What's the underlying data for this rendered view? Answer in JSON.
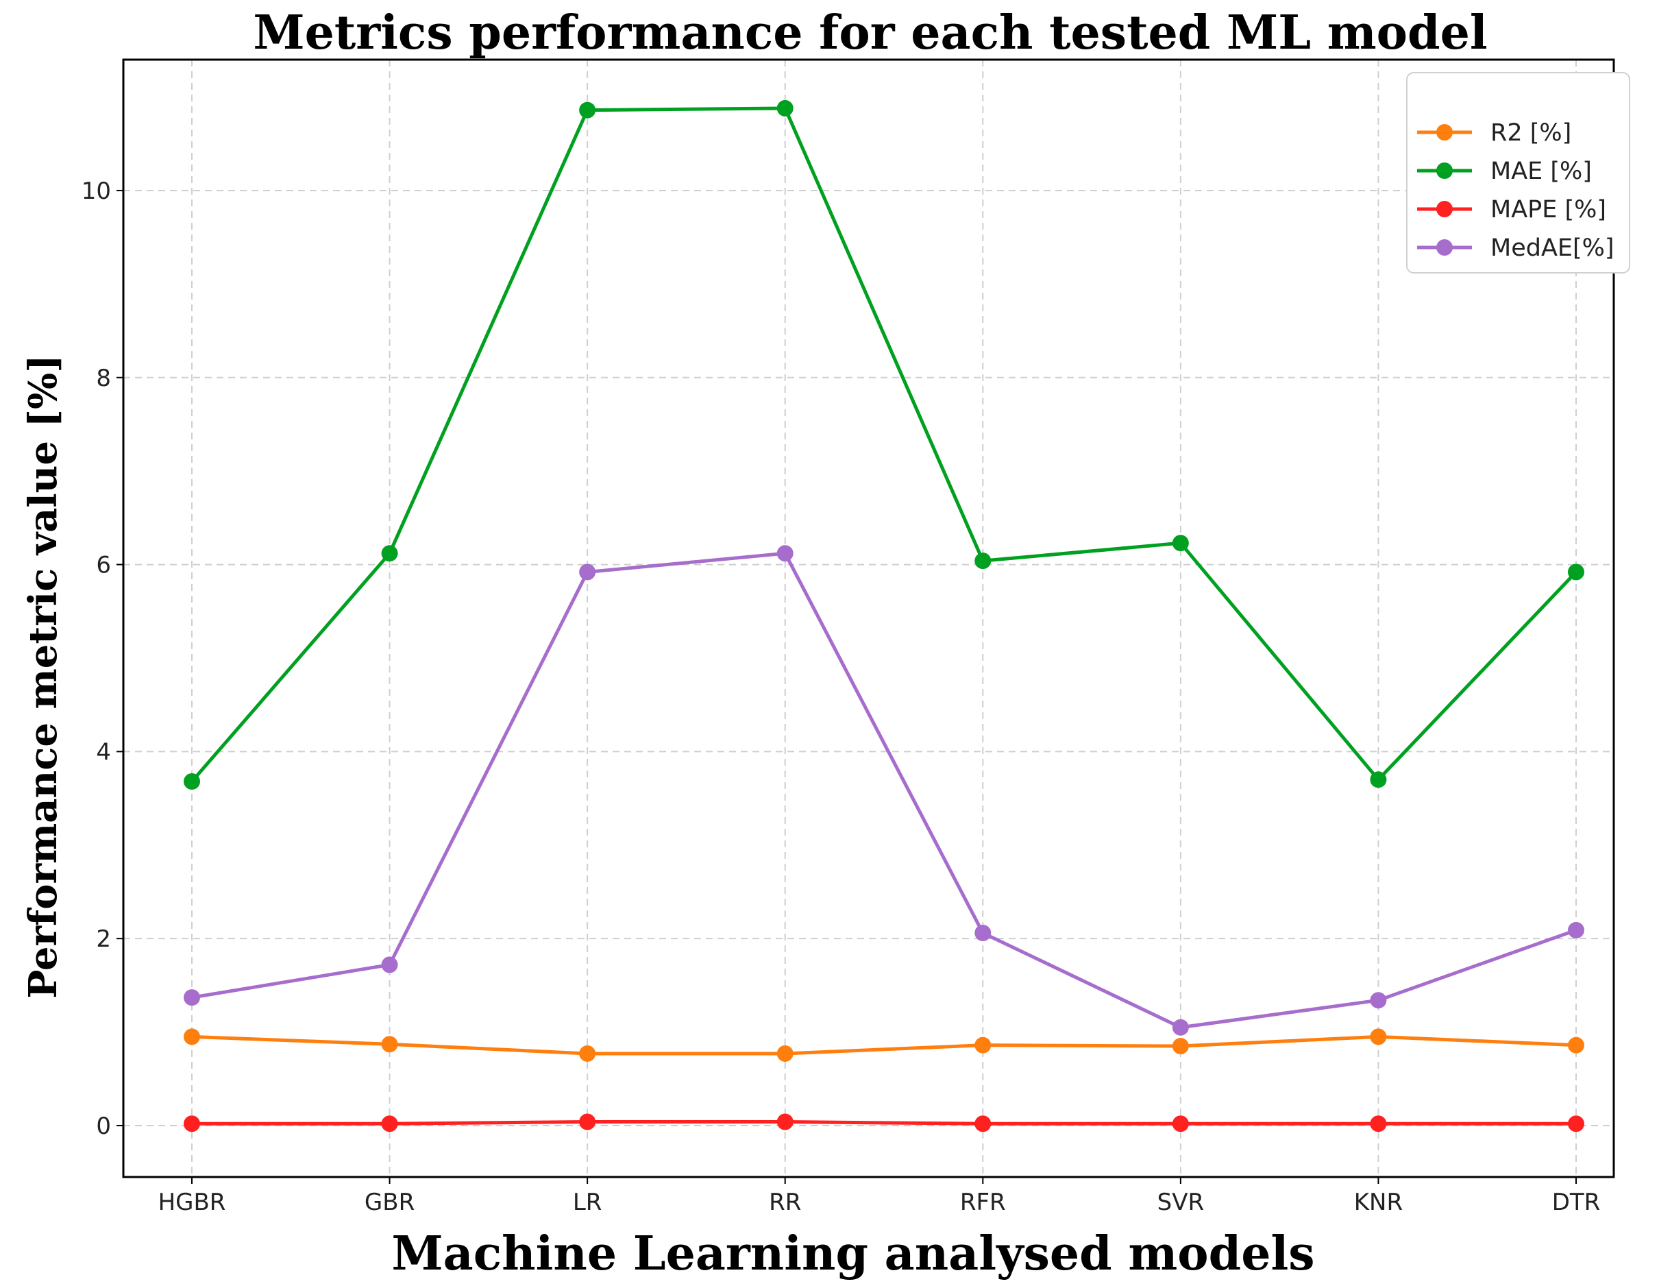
{
  "chart_data": {
    "type": "line",
    "title": "Metrics performance for each tested ML model",
    "xlabel": "Machine Learning analysed models",
    "ylabel": "Performance metric value [%]",
    "categories": [
      "HGBR",
      "GBR",
      "LR",
      "RR",
      "RFR",
      "SVR",
      "KNR",
      "DTR"
    ],
    "ylim": [
      -0.55,
      11.4
    ],
    "yticks": [
      0,
      2,
      4,
      6,
      8,
      10
    ],
    "grid": true,
    "legend_position": "top-right",
    "series": [
      {
        "name": "R2 [%]",
        "color": "#ff7f0e",
        "values": [
          0.95,
          0.87,
          0.77,
          0.77,
          0.86,
          0.85,
          0.95,
          0.86
        ]
      },
      {
        "name": "MAE [%]",
        "color": "#00a020",
        "values": [
          3.68,
          6.12,
          10.86,
          10.88,
          6.04,
          6.23,
          3.7,
          5.92
        ]
      },
      {
        "name": "MAPE [%]",
        "color": "#ff2020",
        "values": [
          0.02,
          0.02,
          0.04,
          0.04,
          0.02,
          0.02,
          0.02,
          0.02
        ]
      },
      {
        "name": "MedAE[%]",
        "color": "#a66dcc",
        "values": [
          1.37,
          1.72,
          5.92,
          6.12,
          2.06,
          1.05,
          1.34,
          2.09
        ]
      }
    ]
  }
}
